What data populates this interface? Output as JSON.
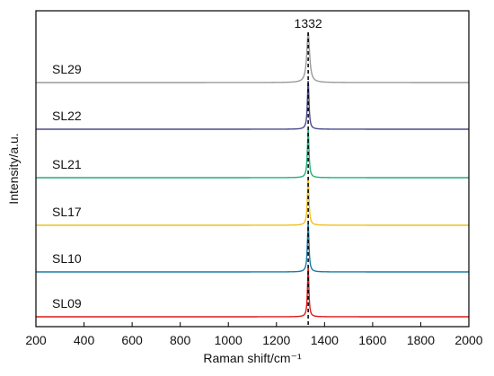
{
  "chart_data": {
    "type": "line",
    "xlabel": "Raman shift/cm⁻¹",
    "ylabel": "Intensity/a.u.",
    "xlim": [
      200,
      2000
    ],
    "x_ticks": [
      "200",
      "400",
      "600",
      "800",
      "1000",
      "1200",
      "1400",
      "1600",
      "1800",
      "2000"
    ],
    "grid": false,
    "legend": "none",
    "annotation": {
      "text": "1332",
      "x": 1332,
      "style": "dashed-vertical"
    },
    "series": [
      {
        "name": "SL29",
        "color": "#9a9a9a",
        "peak_x": 1332,
        "peak_height": 1.0,
        "width": 7
      },
      {
        "name": "SL22",
        "color": "#4a4a8c",
        "peak_x": 1332,
        "peak_height": 1.0,
        "width": 4
      },
      {
        "name": "SL21",
        "color": "#1fb07a",
        "peak_x": 1332,
        "peak_height": 1.0,
        "width": 4
      },
      {
        "name": "SL17",
        "color": "#f0c020",
        "peak_x": 1332,
        "peak_height": 1.0,
        "width": 4
      },
      {
        "name": "SL10",
        "color": "#1a7aa6",
        "peak_x": 1332,
        "peak_height": 1.0,
        "width": 4
      },
      {
        "name": "SL09",
        "color": "#e01818",
        "peak_x": 1332,
        "peak_height": 1.0,
        "width": 3.5
      }
    ]
  }
}
